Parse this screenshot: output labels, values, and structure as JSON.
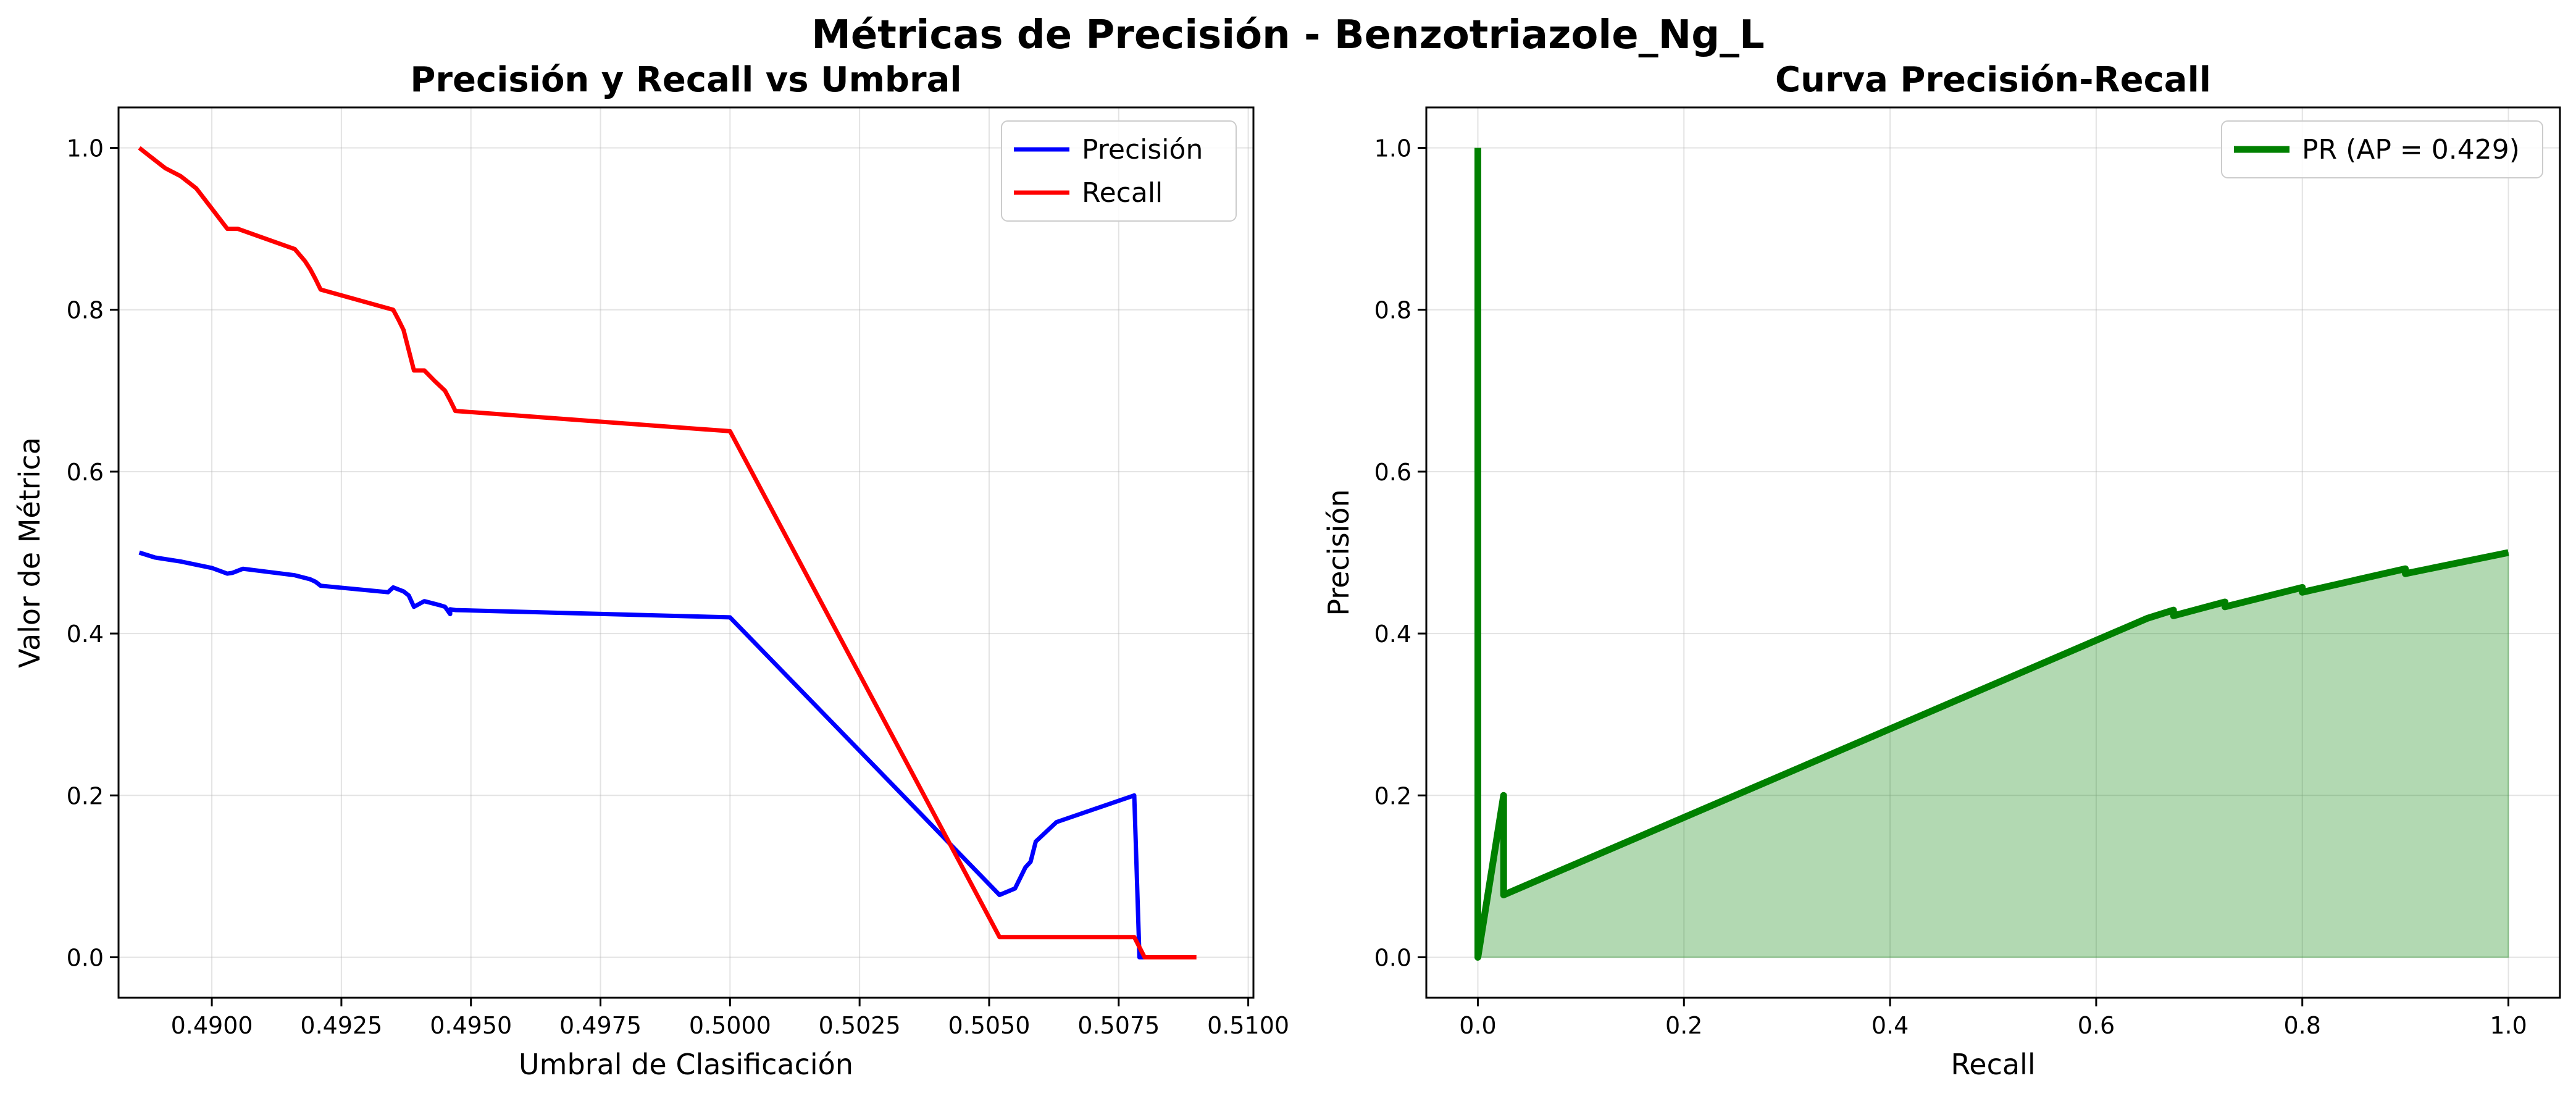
{
  "suptitle": "Métricas de Precisión - Benzotriazole_Ng_L",
  "chart_data": [
    {
      "type": "line",
      "title": "Precisión y Recall vs Umbral",
      "xlabel": "Umbral de Clasificación",
      "ylabel": "Valor de Métrica",
      "xlim": [
        0.4882,
        0.5101
      ],
      "ylim": [
        -0.05,
        1.05
      ],
      "xticks": [
        0.49,
        0.4925,
        0.495,
        0.4975,
        0.5,
        0.5025,
        0.505,
        0.5075,
        0.51
      ],
      "xtick_labels": [
        "0.4900",
        "0.4925",
        "0.4950",
        "0.4975",
        "0.5000",
        "0.5025",
        "0.5050",
        "0.5075",
        "0.5100"
      ],
      "yticks": [
        0.0,
        0.2,
        0.4,
        0.6,
        0.8,
        1.0
      ],
      "ytick_labels": [
        "0.0",
        "0.2",
        "0.4",
        "0.6",
        "0.8",
        "1.0"
      ],
      "grid": true,
      "legend": "top-right",
      "series": [
        {
          "name": "Precisión",
          "color": "#0000ff",
          "x": [
            0.4886,
            0.4889,
            0.4894,
            0.49,
            0.4903,
            0.4904,
            0.4906,
            0.4916,
            0.4919,
            0.492,
            0.4921,
            0.4934,
            0.4935,
            0.4937,
            0.4938,
            0.4939,
            0.4941,
            0.4944,
            0.4945,
            0.4946,
            0.4946,
            0.4947,
            0.5,
            0.5052,
            0.5055,
            0.5057,
            0.5058,
            0.5059,
            0.5063,
            0.5078,
            0.5079,
            0.508
          ],
          "y": [
            0.5,
            0.494,
            0.489,
            0.481,
            0.474,
            0.475,
            0.48,
            0.472,
            0.467,
            0.464,
            0.459,
            0.451,
            0.457,
            0.452,
            0.447,
            0.433,
            0.44,
            0.435,
            0.433,
            0.424,
            0.43,
            0.429,
            0.42,
            0.077,
            0.085,
            0.111,
            0.118,
            0.143,
            0.167,
            0.2,
            0.0,
            0.0
          ]
        },
        {
          "name": "Recall",
          "color": "#ff0000",
          "x": [
            0.4886,
            0.4888,
            0.4891,
            0.4894,
            0.4897,
            0.49,
            0.4903,
            0.4905,
            0.4916,
            0.4918,
            0.4919,
            0.492,
            0.4921,
            0.4935,
            0.4936,
            0.4937,
            0.4938,
            0.4939,
            0.4941,
            0.4943,
            0.4945,
            0.4946,
            0.4947,
            0.5,
            0.5052,
            0.5055,
            0.5078,
            0.508,
            0.509
          ],
          "y": [
            1.0,
            0.99,
            0.975,
            0.965,
            0.95,
            0.925,
            0.9,
            0.9,
            0.875,
            0.86,
            0.85,
            0.838,
            0.825,
            0.8,
            0.788,
            0.775,
            0.75,
            0.725,
            0.725,
            0.712,
            0.7,
            0.688,
            0.675,
            0.65,
            0.025,
            0.025,
            0.025,
            0.0,
            0.0
          ]
        }
      ]
    },
    {
      "type": "area",
      "title": "Curva Precisión-Recall",
      "xlabel": "Recall",
      "ylabel": "Precisión",
      "xlim": [
        -0.05,
        1.05
      ],
      "ylim": [
        -0.05,
        1.05
      ],
      "xticks": [
        0.0,
        0.2,
        0.4,
        0.6,
        0.8,
        1.0
      ],
      "xtick_labels": [
        "0.0",
        "0.2",
        "0.4",
        "0.6",
        "0.8",
        "1.0"
      ],
      "yticks": [
        0.0,
        0.2,
        0.4,
        0.6,
        0.8,
        1.0
      ],
      "ytick_labels": [
        "0.0",
        "0.2",
        "0.4",
        "0.6",
        "0.8",
        "1.0"
      ],
      "grid": true,
      "legend": "top-right",
      "series": [
        {
          "name": "PR (AP = 0.429)",
          "color": "#008000",
          "fill_color": "#008000",
          "x": [
            0.0,
            0.0,
            0.0,
            0.025,
            0.025,
            0.65,
            0.675,
            0.675,
            0.725,
            0.725,
            0.8,
            0.8,
            0.9,
            0.9,
            1.0
          ],
          "y": [
            1.0,
            0.0,
            0.0,
            0.2,
            0.077,
            0.419,
            0.429,
            0.422,
            0.439,
            0.433,
            0.457,
            0.451,
            0.48,
            0.474,
            0.5
          ]
        }
      ]
    }
  ]
}
